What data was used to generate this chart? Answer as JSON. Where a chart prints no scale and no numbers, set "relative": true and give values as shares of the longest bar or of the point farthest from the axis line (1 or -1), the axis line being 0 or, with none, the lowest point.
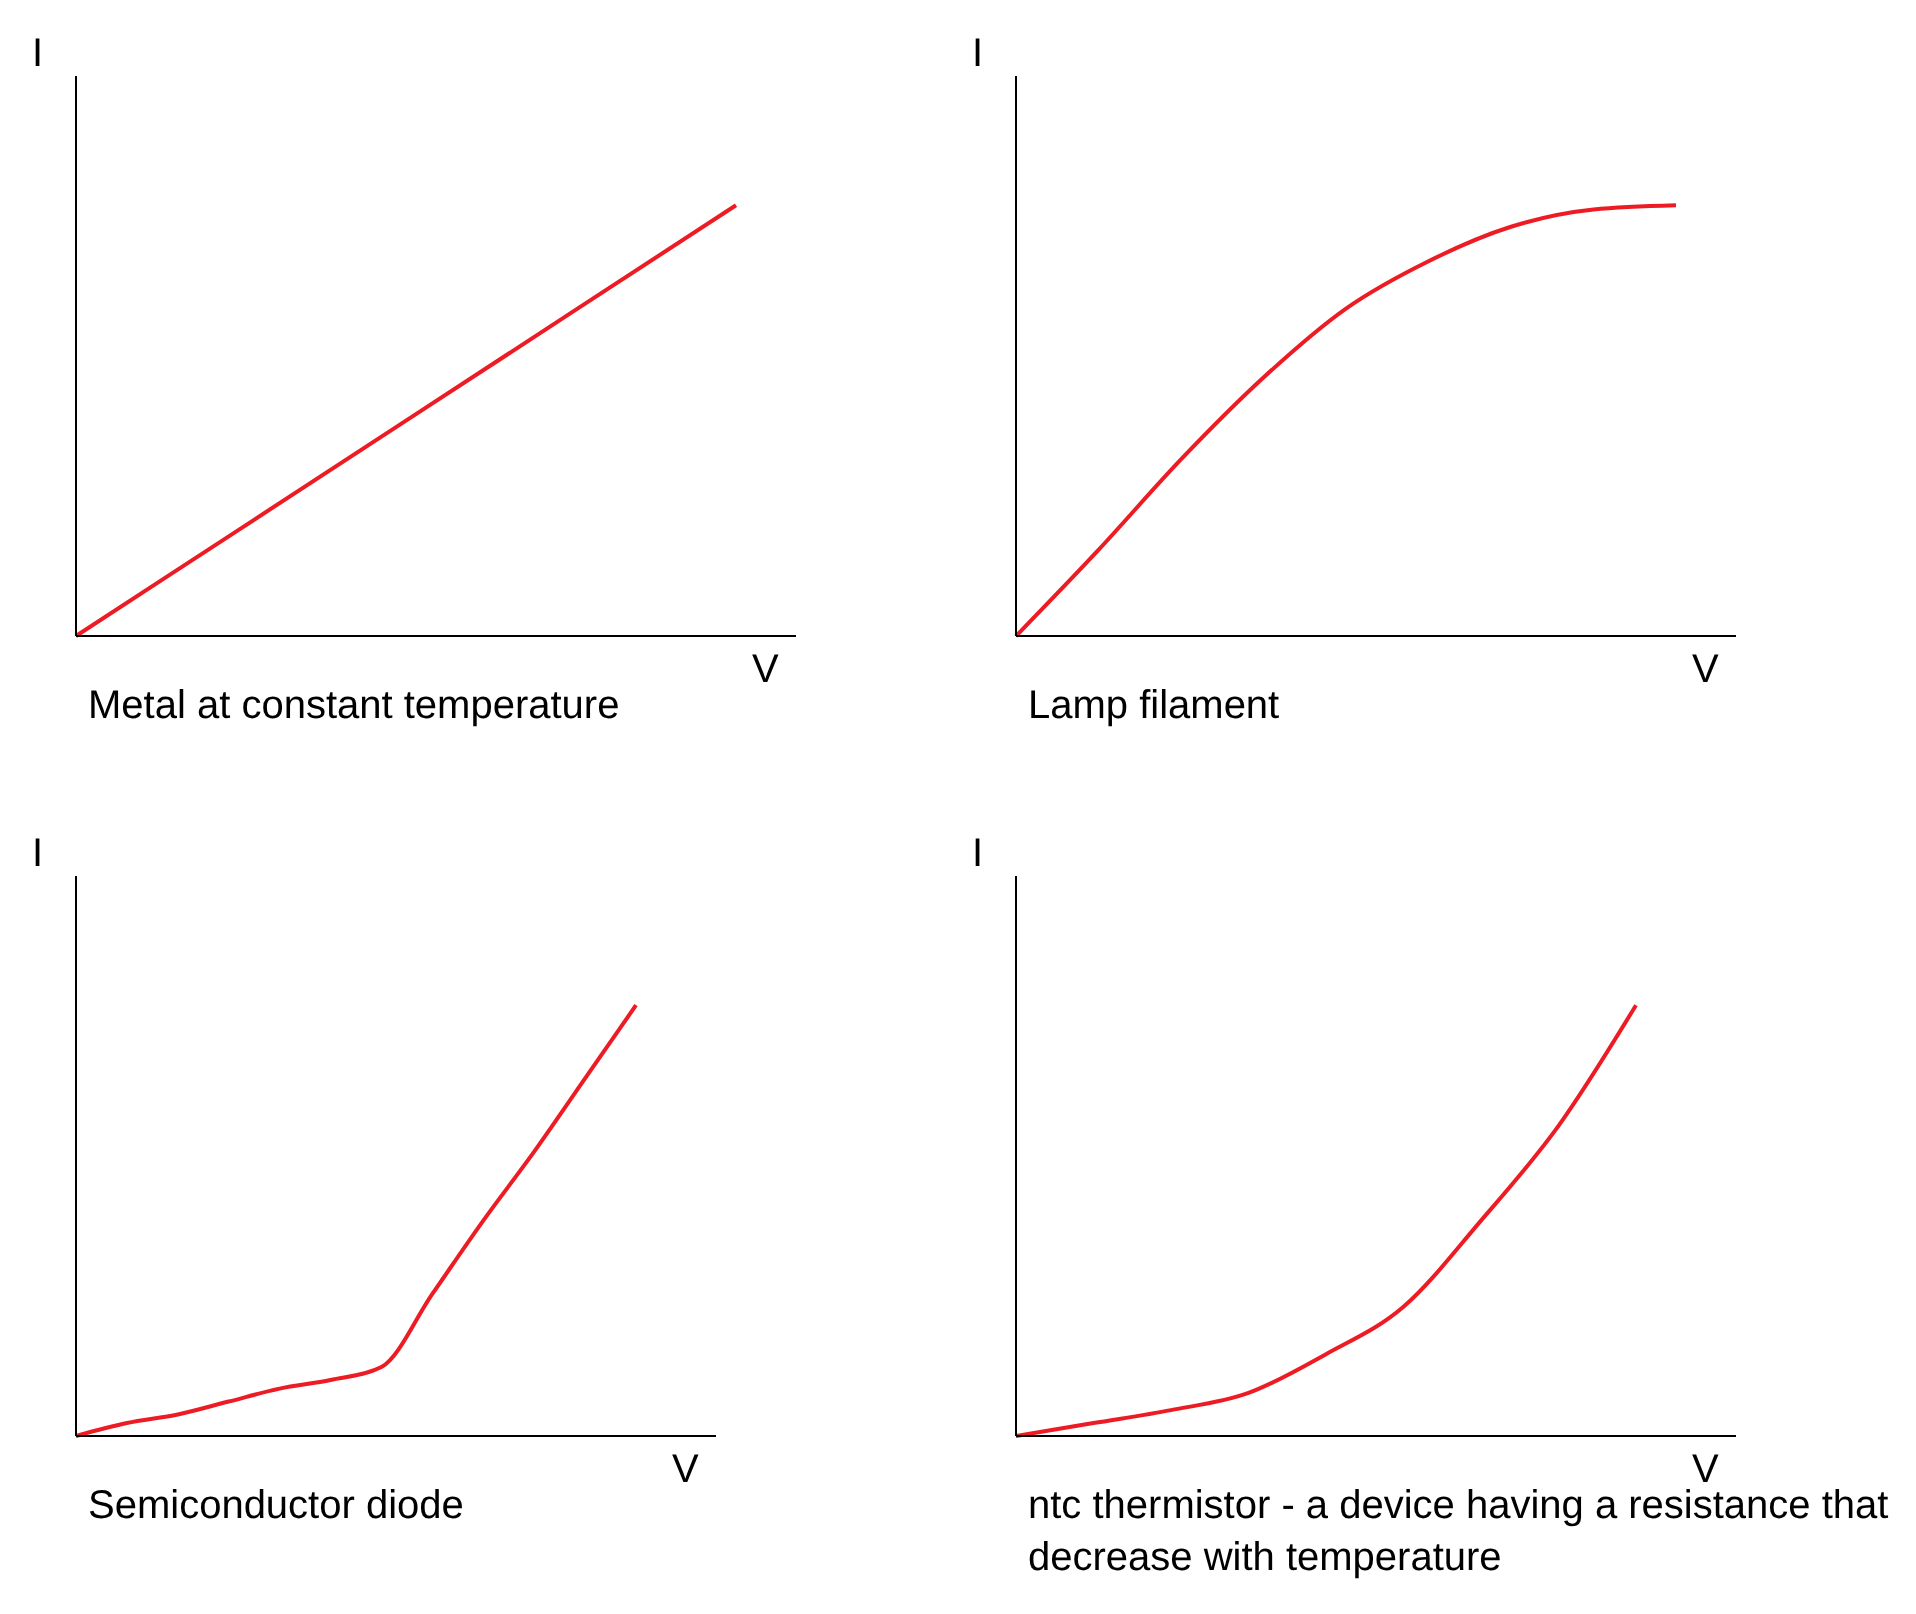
{
  "chart_data": [
    {
      "type": "line",
      "relative": true,
      "xlabel": "V",
      "ylabel": "I",
      "color": "#ed1c24",
      "categories": [
        null,
        null,
        null,
        null,
        null
      ],
      "values": [
        0,
        0.25,
        0.5,
        0.75,
        1
      ],
      "annotations": [
        "Metal at constant temperature"
      ]
    },
    {
      "type": "line",
      "relative": true,
      "xlabel": "V",
      "ylabel": "I",
      "color": "#ed1c24",
      "categories": [
        null,
        null,
        null,
        null,
        null,
        null,
        null,
        null,
        null
      ],
      "values": [
        0,
        0.2,
        0.41,
        0.6,
        0.76,
        0.87,
        0.95,
        0.99,
        1
      ],
      "annotations": [
        "Lamp filament"
      ]
    },
    {
      "type": "line",
      "relative": true,
      "xlabel": "V",
      "ylabel": "I",
      "color": "#ed1c24",
      "categories": [
        null,
        null,
        null,
        null,
        null,
        null,
        null,
        null,
        null,
        null,
        null,
        null
      ],
      "values": [
        0,
        0.03,
        0.05,
        0.08,
        0.11,
        0.13,
        0.16,
        0.33,
        0.5,
        0.66,
        0.83,
        1
      ],
      "annotations": [
        "Semiconductor diode"
      ]
    },
    {
      "type": "line",
      "relative": true,
      "xlabel": "V",
      "ylabel": "I",
      "color": "#ed1c24",
      "categories": [
        null,
        null,
        null,
        null,
        null,
        null,
        null,
        null,
        null
      ],
      "values": [
        0,
        0.03,
        0.06,
        0.1,
        0.19,
        0.3,
        0.5,
        0.72,
        1
      ],
      "annotations": [
        "ntc thermistor - a device having a resistance that decrease with temperature"
      ]
    }
  ]
}
